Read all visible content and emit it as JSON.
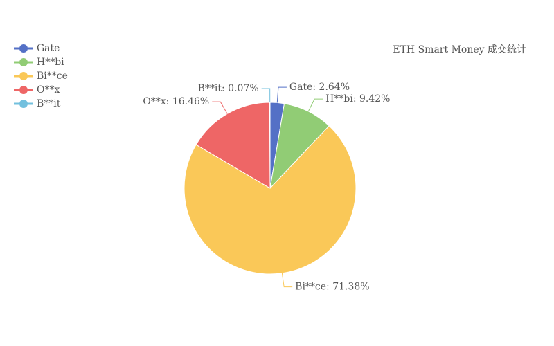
{
  "chart_data": {
    "type": "pie",
    "title": "ETH Smart Money 成交统计",
    "categories": [
      "Gate",
      "H**bi",
      "Bi**ce",
      "O**x",
      "B**it"
    ],
    "values": [
      2.64,
      9.42,
      71.38,
      16.46,
      0.07
    ],
    "value_labels": [
      "Gate: 2.64%",
      "H**bi: 9.42%",
      "Bi**ce: 71.38%",
      "O**x: 16.46%",
      "B**it: 0.07%"
    ],
    "colors": [
      "#5470c6",
      "#91cc75",
      "#fac858",
      "#ee6666",
      "#73c0de"
    ],
    "legend": "top-left"
  }
}
